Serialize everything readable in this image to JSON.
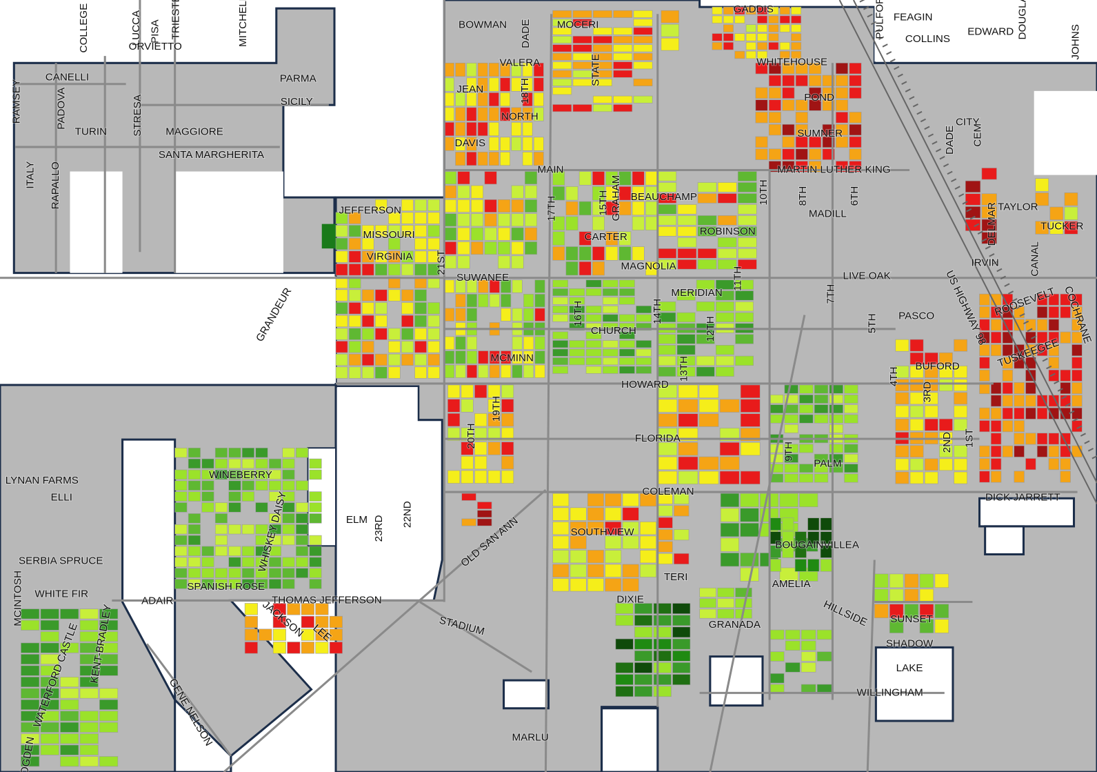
{
  "streets": [
    "COLLEGE",
    "LUCCA",
    "PISA",
    "TRIESTE",
    "MITCHELL",
    "ORVIETTO",
    "BOWMAN",
    "DADE",
    "MOCERI",
    "GADDIS",
    "PULFORD",
    "FEAGIN",
    "DOUGLAS",
    "EDWARD",
    "COLLINS",
    "JOHNS",
    "VALERA",
    "CANELLI",
    "PARMA",
    "RAMSEY",
    "PADOVA",
    "STATE",
    "WHITEHOUSE",
    "JEAN",
    "18TH",
    "SICILY",
    "POND",
    "NORTH",
    "TURIN",
    "STRESA",
    "MAGGIORE",
    "SUMNER",
    "CITY",
    "DADE",
    "CEM",
    "DAVIS",
    "SANTA MARGHERITA",
    "ITALY",
    "RAPALLO",
    "MAIN",
    "MARTIN LUTHER KING",
    "GRAHAM",
    "15TH",
    "BEAUCHAMP",
    "10TH",
    "8TH",
    "6TH",
    "17TH",
    "MADILL",
    "TAYLOR",
    "JEFFERSON",
    "TUCKER",
    "MISSOURI",
    "CARTER",
    "ROBINSON",
    "DELMAR",
    "VIRGINIA",
    "21ST",
    "MAGNOLIA",
    "IRVIN",
    "CANAL",
    "US HIGHWAY 98",
    "SUWANEE",
    "LIVE OAK",
    "11TH",
    "7TH",
    "MERIDIAN",
    "ROOSEVELT",
    "COCHRANE",
    "GRANDEUR",
    "16TH",
    "14TH",
    "PASCO",
    "5TH",
    "CHURCH",
    "12TH",
    "TUSKEEGEE",
    "MCMINN",
    "BUFORD",
    "4TH",
    "13TH",
    "HOWARD",
    "3RD",
    "19TH",
    "FLORIDA",
    "2ND",
    "1ST",
    "20TH",
    "9TH",
    "PALM",
    "LYNAN FARMS",
    "ELLI",
    "WINEBERRY",
    "WHISKEY DAISY",
    "DICK JARRETT",
    "COLEMAN",
    "ELM",
    "23RD",
    "22ND",
    "OLD SAN ANN",
    "SOUTHVIEW",
    "BOUGAINVILLEA",
    "SERBIA SPRUCE",
    "TERI",
    "AMELIA",
    "SPANISH ROSE",
    "WHITE FIR",
    "THOMAS JEFFERSON",
    "ADAIR",
    "DIXIE",
    "MCINTOSH",
    "KENT-BRADLEY",
    "HILLSIDE",
    "SUNSET",
    "JACKSON",
    "LEE",
    "STADIUM",
    "GRANADA",
    "WATERFORD CASTLE",
    "SHADOW",
    "LAKE",
    "GENE NELSON",
    "WILLINGHAM",
    "MARLU",
    "OGDEN"
  ]
}
